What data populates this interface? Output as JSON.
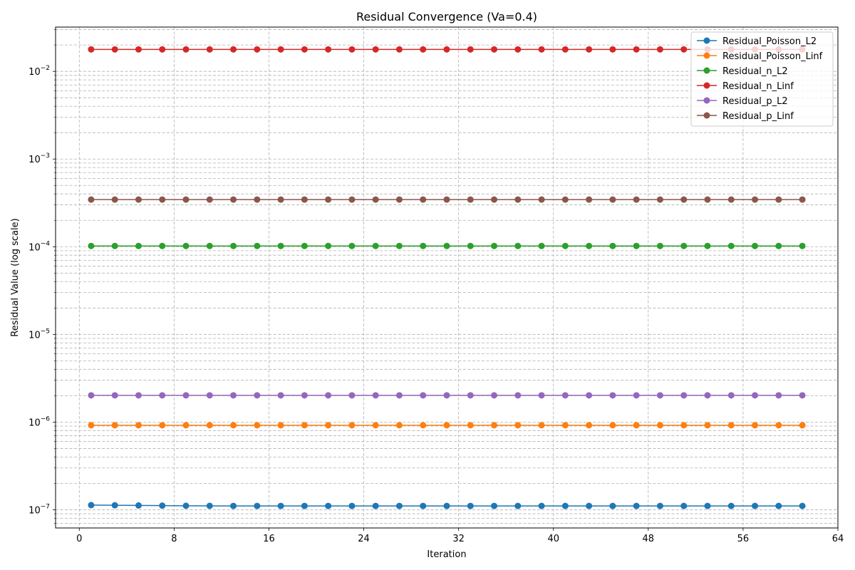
{
  "chart_data": {
    "type": "line",
    "title": "Residual Convergence (Va=0.4)",
    "xlabel": "Iteration",
    "ylabel": "Residual Value (log scale)",
    "xlim": [
      -2,
      64
    ],
    "ylim": [
      6.2e-08,
      0.032
    ],
    "yscale": "log",
    "grid": true,
    "legend_position": "top-right",
    "x_ticks": [
      0,
      8,
      16,
      24,
      32,
      40,
      48,
      56,
      64
    ],
    "y_ticks": [
      {
        "value": 1e-07,
        "label": "10",
        "exp": "−7"
      },
      {
        "value": 1e-06,
        "label": "10",
        "exp": "−6"
      },
      {
        "value": 1e-05,
        "label": "10",
        "exp": "−5"
      },
      {
        "value": 0.0001,
        "label": "10",
        "exp": "−4"
      },
      {
        "value": 0.001,
        "label": "10",
        "exp": "−3"
      },
      {
        "value": 0.01,
        "label": "10",
        "exp": "−2"
      }
    ],
    "x": [
      1,
      3,
      5,
      7,
      9,
      11,
      13,
      15,
      17,
      19,
      21,
      23,
      25,
      27,
      29,
      31,
      33,
      35,
      37,
      39,
      41,
      43,
      45,
      47,
      49,
      51,
      53,
      55,
      57,
      59,
      61
    ],
    "series": [
      {
        "name": "Residual_Poisson_L2",
        "color": "#1f77b4",
        "values": [
          1.13e-07,
          1.125e-07,
          1.12e-07,
          1.115e-07,
          1.11e-07,
          1.108e-07,
          1.106e-07,
          1.105e-07,
          1.105e-07,
          1.105e-07,
          1.105e-07,
          1.105e-07,
          1.105e-07,
          1.105e-07,
          1.105e-07,
          1.105e-07,
          1.105e-07,
          1.105e-07,
          1.105e-07,
          1.105e-07,
          1.105e-07,
          1.105e-07,
          1.105e-07,
          1.105e-07,
          1.105e-07,
          1.105e-07,
          1.105e-07,
          1.105e-07,
          1.105e-07,
          1.105e-07,
          1.105e-07
        ]
      },
      {
        "name": "Residual_Poisson_Linf",
        "color": "#ff7f0e",
        "values": [
          9.2e-07,
          9.2e-07,
          9.2e-07,
          9.2e-07,
          9.2e-07,
          9.2e-07,
          9.2e-07,
          9.2e-07,
          9.2e-07,
          9.2e-07,
          9.2e-07,
          9.2e-07,
          9.2e-07,
          9.2e-07,
          9.2e-07,
          9.2e-07,
          9.2e-07,
          9.2e-07,
          9.2e-07,
          9.2e-07,
          9.2e-07,
          9.2e-07,
          9.2e-07,
          9.2e-07,
          9.2e-07,
          9.2e-07,
          9.2e-07,
          9.2e-07,
          9.2e-07,
          9.2e-07,
          9.2e-07
        ]
      },
      {
        "name": "Residual_n_L2",
        "color": "#2ca02c",
        "values": [
          0.000102,
          0.000102,
          0.000102,
          0.000102,
          0.000102,
          0.000102,
          0.000102,
          0.000102,
          0.000102,
          0.000102,
          0.000102,
          0.000102,
          0.000102,
          0.000102,
          0.000102,
          0.000102,
          0.000102,
          0.000102,
          0.000102,
          0.000102,
          0.000102,
          0.000102,
          0.000102,
          0.000102,
          0.000102,
          0.000102,
          0.000102,
          0.000102,
          0.000102,
          0.000102,
          0.000102
        ]
      },
      {
        "name": "Residual_n_Linf",
        "color": "#d62728",
        "values": [
          0.0178,
          0.0178,
          0.0178,
          0.0178,
          0.0178,
          0.0178,
          0.0178,
          0.0178,
          0.0178,
          0.0178,
          0.0178,
          0.0178,
          0.0178,
          0.0178,
          0.0178,
          0.0178,
          0.0178,
          0.0178,
          0.0178,
          0.0178,
          0.0178,
          0.0178,
          0.0178,
          0.0178,
          0.0178,
          0.0178,
          0.0178,
          0.0178,
          0.0178,
          0.0178,
          0.0178
        ]
      },
      {
        "name": "Residual_p_L2",
        "color": "#9467bd",
        "values": [
          2.02e-06,
          2.02e-06,
          2.02e-06,
          2.02e-06,
          2.02e-06,
          2.02e-06,
          2.02e-06,
          2.02e-06,
          2.02e-06,
          2.02e-06,
          2.02e-06,
          2.02e-06,
          2.02e-06,
          2.02e-06,
          2.02e-06,
          2.02e-06,
          2.02e-06,
          2.02e-06,
          2.02e-06,
          2.02e-06,
          2.02e-06,
          2.02e-06,
          2.02e-06,
          2.02e-06,
          2.02e-06,
          2.02e-06,
          2.02e-06,
          2.02e-06,
          2.02e-06,
          2.02e-06,
          2.02e-06
        ]
      },
      {
        "name": "Residual_p_Linf",
        "color": "#8c564b",
        "values": [
          0.000345,
          0.000345,
          0.000345,
          0.000345,
          0.000345,
          0.000345,
          0.000345,
          0.000345,
          0.000345,
          0.000345,
          0.000345,
          0.000345,
          0.000345,
          0.000345,
          0.000345,
          0.000345,
          0.000345,
          0.000345,
          0.000345,
          0.000345,
          0.000345,
          0.000345,
          0.000345,
          0.000345,
          0.000345,
          0.000345,
          0.000345,
          0.000345,
          0.000345,
          0.000345,
          0.000345
        ]
      }
    ]
  }
}
